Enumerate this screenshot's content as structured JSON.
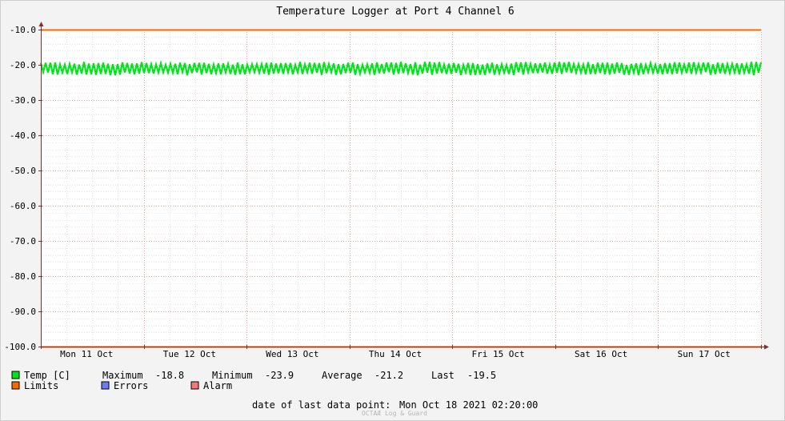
{
  "chart_data": {
    "type": "line",
    "title": "Temperature Logger at Port 4 Channel 6",
    "ylim": [
      -100,
      -10
    ],
    "yticks": [
      -10,
      -20,
      -30,
      -40,
      -50,
      -60,
      -70,
      -80,
      -90,
      -100
    ],
    "ytick_labels": [
      "-10.0",
      "-20.0",
      "-30.0",
      "-40.0",
      "-50.0",
      "-60.0",
      "-70.0",
      "-80.0",
      "-90.0",
      "-100.0"
    ],
    "x_range_days": [
      0,
      7
    ],
    "xtick_labels": [
      "Mon 11 Oct",
      "Tue 12 Oct",
      "Wed 13 Oct",
      "Thu 14 Oct",
      "Fri 15 Oct",
      "Sat 16 Oct",
      "Sun 17 Oct"
    ],
    "grid": true,
    "series": [
      {
        "name": "Temp [C]",
        "color": "#00e41b",
        "band_low": -23.9,
        "band_high": -18.8,
        "typical_low": -22.5,
        "typical_high": -19.6
      }
    ],
    "limits": {
      "name": "Limits",
      "color": "#f26b00",
      "upper": -10,
      "lower": -100
    },
    "stats": {
      "maximum_label": "Maximum",
      "maximum": "-18.8",
      "minimum_label": "Minimum",
      "minimum": "-23.9",
      "average_label": "Average",
      "average": "-21.2",
      "last_label": "Last",
      "last": "-19.5"
    },
    "legend": [
      {
        "name": "Temp [C]",
        "color": "#00e41b"
      },
      {
        "name": "Limits",
        "color": "#f26b00"
      },
      {
        "name": "Errors",
        "color": "#6e7cf2"
      },
      {
        "name": "Alarm",
        "color": "#f07a78"
      }
    ],
    "footer_label": "date of last data point:",
    "footer_value": "Mon Oct 18 2021 02:20:00",
    "watermark": "OCTAÆ Log & Guard"
  }
}
